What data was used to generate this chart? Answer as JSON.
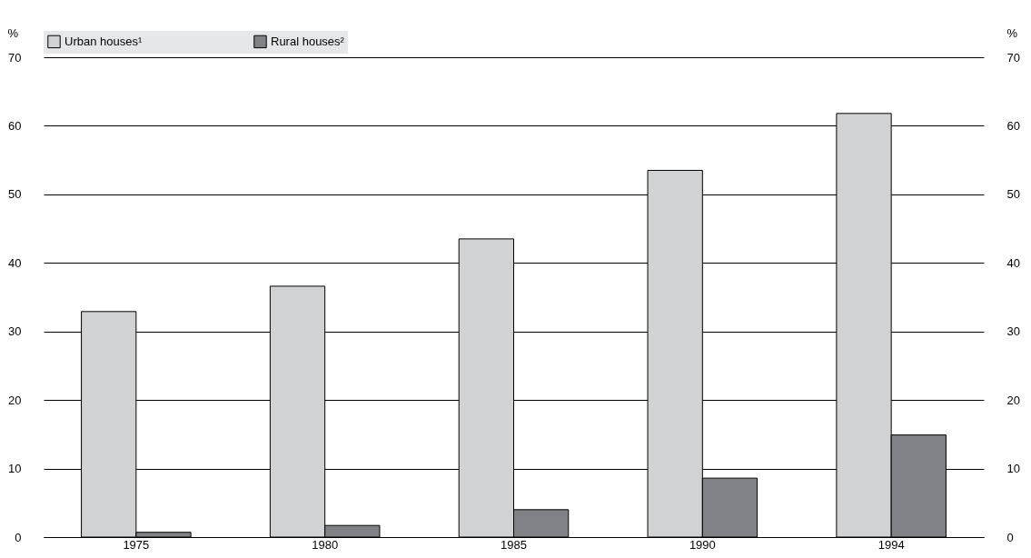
{
  "chart_data": {
    "type": "bar",
    "ylabel": "%",
    "y2label": "%",
    "categories": [
      "1975",
      "1980",
      "1985",
      "1990",
      "1994"
    ],
    "series": [
      {
        "name": "Urban houses¹",
        "color": "#d1d2d4",
        "values": [
          32.9,
          36.6,
          43.5,
          53.5,
          61.8
        ]
      },
      {
        "name": "Rural houses²",
        "color": "#808285",
        "values": [
          0.7,
          1.7,
          4.0,
          8.6,
          14.9
        ]
      }
    ],
    "ylim": [
      0,
      70
    ],
    "yticks": [
      0,
      10,
      20,
      30,
      40,
      50,
      60,
      70
    ],
    "y2lim": [
      0,
      70
    ],
    "y2ticks": [
      0,
      10,
      20,
      30,
      40,
      50,
      60,
      70
    ],
    "grid": "y",
    "legend": "top"
  }
}
